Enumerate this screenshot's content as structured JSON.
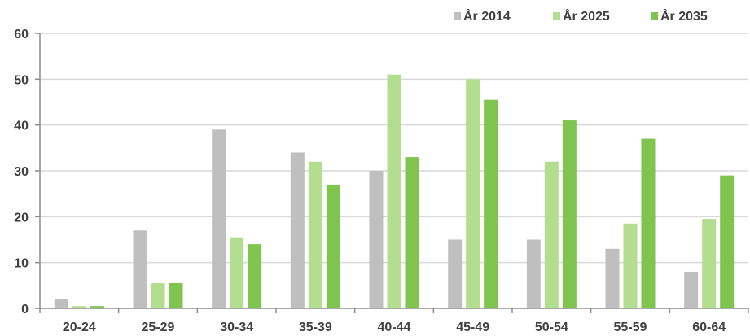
{
  "chart_data": {
    "type": "bar",
    "categories": [
      "20-24",
      "25-29",
      "30-34",
      "35-39",
      "40-44",
      "45-49",
      "50-54",
      "55-59",
      "60-64"
    ],
    "series": [
      {
        "name": "År 2014",
        "color": "#bfbfbf",
        "values": [
          2,
          17,
          39,
          34,
          30,
          15,
          15,
          13,
          8
        ]
      },
      {
        "name": "År 2025",
        "color": "#b3dd8f",
        "values": [
          0.5,
          5.5,
          15.5,
          32,
          51,
          50,
          32,
          18.5,
          19.5
        ]
      },
      {
        "name": "År 2035",
        "color": "#7fc44e",
        "values": [
          0.5,
          5.5,
          14,
          27,
          33,
          45.5,
          41,
          37,
          29
        ]
      }
    ],
    "title": "",
    "xlabel": "",
    "ylabel": "",
    "ylim": [
      0,
      60
    ],
    "yticks": [
      0,
      10,
      20,
      30,
      40,
      50,
      60
    ],
    "grid": true,
    "legend_position": "top-right"
  }
}
